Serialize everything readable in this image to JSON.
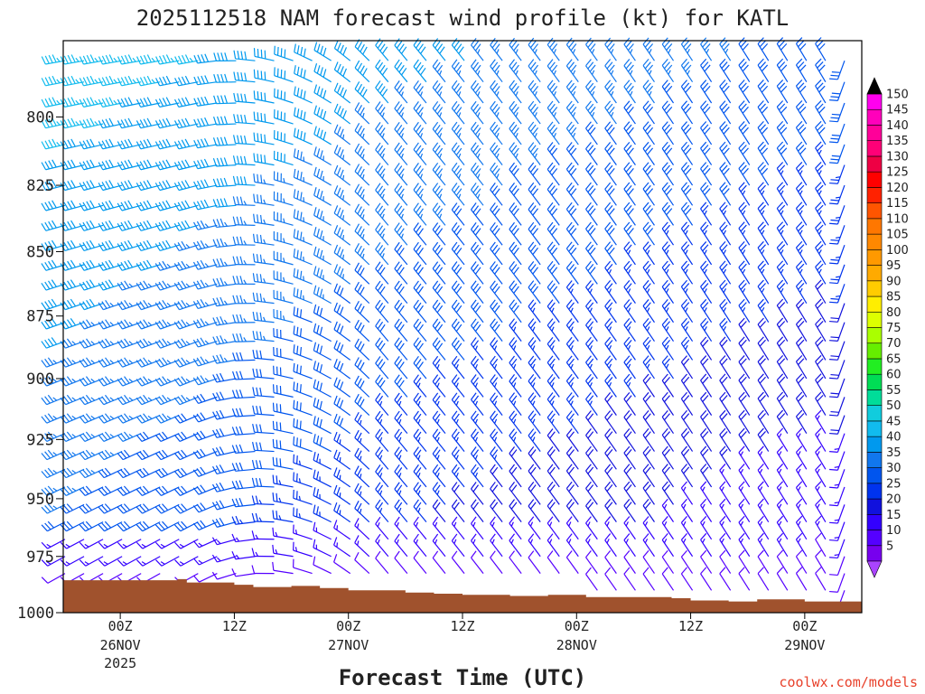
{
  "chart_data": {
    "type": "wind-barb-profile",
    "title": "2025112518 NAM forecast wind profile (kt) for KATL",
    "xlabel": "Forecast Time (UTC)",
    "ylabel": "",
    "y_axis": {
      "ticks": [
        800,
        825,
        850,
        875,
        900,
        925,
        950,
        975,
        1000
      ],
      "labels": [
        "800",
        "825",
        "850",
        "875",
        "900",
        "925",
        "950",
        "975",
        "1000"
      ],
      "range": [
        773,
        1000
      ],
      "direction": "pressure-decreasing-upward"
    },
    "x_axis": {
      "range_hours": [
        -6,
        78
      ],
      "ticks": [
        {
          "hour": 0,
          "label": "00Z",
          "date": "26NOV",
          "year": "2025"
        },
        {
          "hour": 12,
          "label": "12Z",
          "date": "",
          "year": ""
        },
        {
          "hour": 24,
          "label": "00Z",
          "date": "27NOV",
          "year": ""
        },
        {
          "hour": 36,
          "label": "12Z",
          "date": "",
          "year": ""
        },
        {
          "hour": 48,
          "label": "00Z",
          "date": "28NOV",
          "year": ""
        },
        {
          "hour": 60,
          "label": "12Z",
          "date": "",
          "year": ""
        },
        {
          "hour": 72,
          "label": "00Z",
          "date": "29NOV",
          "year": ""
        }
      ]
    },
    "barb_time_start_hour": -6,
    "barb_time_step_hour": 2,
    "barb_level_top": 780,
    "barb_level_bottom": 990,
    "barb_level_step": 7.5,
    "wind_field_model": {
      "speed_kt": {
        "upper_early": 45,
        "upper_late": 30,
        "low_early": 30,
        "low_mid": 20,
        "low_late": 10,
        "surface": 8
      },
      "direction_deg": {
        "upper_early": 260,
        "low_early": 240,
        "mid": 320,
        "late": 330,
        "last_column": 200
      }
    },
    "colorbar": {
      "levels": [
        5,
        10,
        15,
        20,
        25,
        30,
        35,
        40,
        45,
        50,
        55,
        60,
        65,
        70,
        75,
        80,
        85,
        90,
        95,
        100,
        105,
        110,
        115,
        120,
        125,
        130,
        135,
        140,
        145,
        150
      ],
      "labels": [
        "5",
        "10",
        "15",
        "20",
        "25",
        "30",
        "35",
        "40",
        "45",
        "50",
        "55",
        "60",
        "65",
        "70",
        "75",
        "80",
        "85",
        "90",
        "95",
        "100",
        "105",
        "110",
        "115",
        "120",
        "125",
        "130",
        "135",
        "140",
        "145",
        "150"
      ],
      "colors": [
        "#7700ee",
        "#5500ff",
        "#3300ff",
        "#1111dd",
        "#0033ee",
        "#0055ee",
        "#1177ee",
        "#0099ee",
        "#11bbee",
        "#11ccdd",
        "#00dd99",
        "#00dd55",
        "#22ee22",
        "#66ee00",
        "#aaff00",
        "#ddff00",
        "#ffee00",
        "#ffcc00",
        "#ffaa00",
        "#ff9900",
        "#ff8800",
        "#ff7700",
        "#ff5500",
        "#ff2200",
        "#ff0000",
        "#ee0044",
        "#ff0077",
        "#ff0099",
        "#ff00bb",
        "#ff00ee"
      ],
      "min_end_color": "#aa44ff",
      "max_end_color": "#000000"
    },
    "terrain": {
      "color": "#a0522d",
      "surface_pressure": [
        {
          "hour": -6,
          "p": 985.5
        },
        {
          "hour": 6,
          "p": 985.0
        },
        {
          "hour": 7,
          "p": 986.5
        },
        {
          "hour": 12,
          "p": 987.5
        },
        {
          "hour": 14,
          "p": 988.5
        },
        {
          "hour": 18,
          "p": 988.0
        },
        {
          "hour": 21,
          "p": 989.0
        },
        {
          "hour": 24,
          "p": 990.0
        },
        {
          "hour": 30,
          "p": 991.0
        },
        {
          "hour": 33,
          "p": 991.5
        },
        {
          "hour": 36,
          "p": 992.0
        },
        {
          "hour": 41,
          "p": 992.5
        },
        {
          "hour": 45,
          "p": 992.0
        },
        {
          "hour": 49,
          "p": 993.0
        },
        {
          "hour": 58,
          "p": 993.5
        },
        {
          "hour": 60,
          "p": 994.5
        },
        {
          "hour": 64,
          "p": 995.0
        },
        {
          "hour": 67,
          "p": 994.0
        },
        {
          "hour": 72,
          "p": 995.0
        },
        {
          "hour": 78,
          "p": 995.0
        }
      ]
    }
  },
  "credit": "coolwx.com/models"
}
